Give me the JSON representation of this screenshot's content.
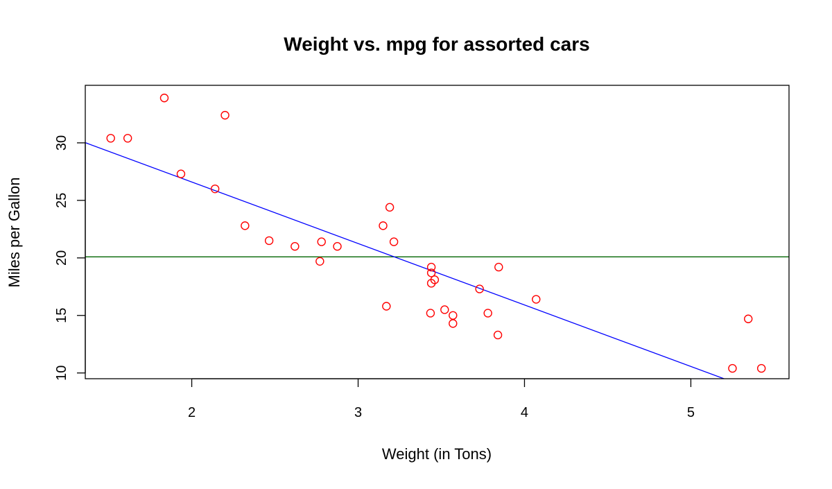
{
  "chart_data": {
    "type": "scatter",
    "title": "Weight vs. mpg for assorted cars",
    "xlabel": "Weight (in Tons)",
    "ylabel": "Miles per Gallon",
    "xlim": [
      1.36,
      5.59
    ],
    "ylim": [
      9.5,
      35.0
    ],
    "x_ticks": [
      2,
      3,
      4,
      5
    ],
    "y_ticks": [
      10,
      15,
      20,
      25,
      30
    ],
    "grid": false,
    "legend": "none",
    "point_style": "open-circle",
    "colors": {
      "points": "#ff0000",
      "regression_line": "#0000ff",
      "mean_line": "#006400",
      "frame": "#000000"
    },
    "points": [
      {
        "x": 1.513,
        "y": 30.4
      },
      {
        "x": 1.615,
        "y": 30.4
      },
      {
        "x": 1.835,
        "y": 33.9
      },
      {
        "x": 1.935,
        "y": 27.3
      },
      {
        "x": 2.14,
        "y": 26.0
      },
      {
        "x": 2.2,
        "y": 32.4
      },
      {
        "x": 2.32,
        "y": 22.8
      },
      {
        "x": 2.465,
        "y": 21.5
      },
      {
        "x": 2.62,
        "y": 21.0
      },
      {
        "x": 2.77,
        "y": 19.7
      },
      {
        "x": 2.78,
        "y": 21.4
      },
      {
        "x": 2.875,
        "y": 21.0
      },
      {
        "x": 3.15,
        "y": 22.8
      },
      {
        "x": 3.17,
        "y": 15.8
      },
      {
        "x": 3.19,
        "y": 24.4
      },
      {
        "x": 3.215,
        "y": 21.4
      },
      {
        "x": 3.435,
        "y": 15.2
      },
      {
        "x": 3.44,
        "y": 18.7
      },
      {
        "x": 3.44,
        "y": 19.2
      },
      {
        "x": 3.44,
        "y": 17.8
      },
      {
        "x": 3.46,
        "y": 18.1
      },
      {
        "x": 3.52,
        "y": 15.5
      },
      {
        "x": 3.57,
        "y": 14.3
      },
      {
        "x": 3.57,
        "y": 15.0
      },
      {
        "x": 3.73,
        "y": 17.3
      },
      {
        "x": 3.78,
        "y": 15.2
      },
      {
        "x": 3.84,
        "y": 13.3
      },
      {
        "x": 3.845,
        "y": 19.2
      },
      {
        "x": 4.07,
        "y": 16.4
      },
      {
        "x": 5.25,
        "y": 10.4
      },
      {
        "x": 5.345,
        "y": 14.7
      },
      {
        "x": 5.424,
        "y": 10.4
      }
    ],
    "regression_line": {
      "intercept": 37.285,
      "slope": -5.344
    },
    "mean_line": {
      "y": 20.09
    }
  }
}
